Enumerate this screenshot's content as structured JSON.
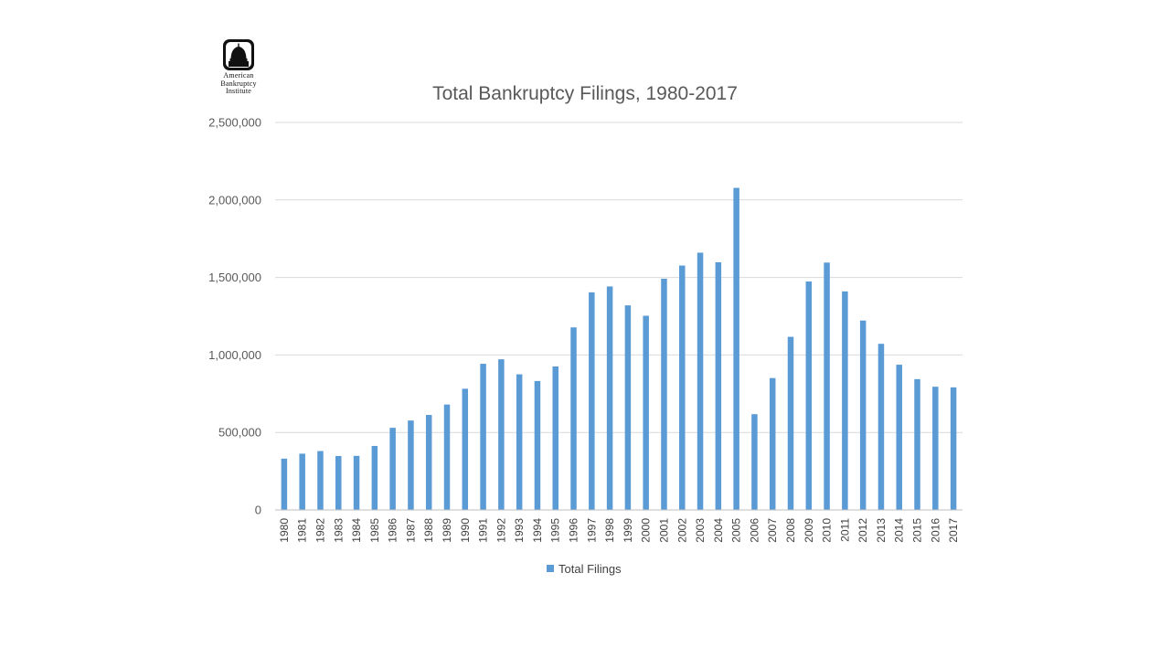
{
  "logo": {
    "icon": "capitol-dome-icon",
    "lines": [
      "American",
      "Bankruptcy",
      "Institute"
    ]
  },
  "colors": {
    "bar": "#5b9bd5",
    "text": "#595959",
    "grid": "#d9d9d9"
  },
  "chart_data": {
    "type": "bar",
    "title": "Total Bankruptcy Filings, 1980-2017",
    "xlabel": "",
    "ylabel": "",
    "ylim": [
      0,
      2500000
    ],
    "yticks": [
      0,
      500000,
      1000000,
      1500000,
      2000000,
      2500000
    ],
    "ytick_labels": [
      "0",
      "500,000",
      "1,000,000",
      "1,500,000",
      "2,000,000",
      "2,500,000"
    ],
    "grid": true,
    "legend_position": "bottom",
    "categories": [
      "1980",
      "1981",
      "1982",
      "1983",
      "1984",
      "1985",
      "1986",
      "1987",
      "1988",
      "1989",
      "1990",
      "1991",
      "1992",
      "1993",
      "1994",
      "1995",
      "1996",
      "1997",
      "1998",
      "1999",
      "2000",
      "2001",
      "2002",
      "2003",
      "2004",
      "2005",
      "2006",
      "2007",
      "2008",
      "2009",
      "2010",
      "2011",
      "2012",
      "2013",
      "2014",
      "2015",
      "2016",
      "2017"
    ],
    "series": [
      {
        "name": "Total Filings",
        "values": [
          331000,
          363000,
          380000,
          348000,
          349000,
          413000,
          530000,
          577000,
          613000,
          680000,
          782000,
          943000,
          972000,
          875000,
          832000,
          926000,
          1178000,
          1404000,
          1442000,
          1320000,
          1253000,
          1492000,
          1577000,
          1660000,
          1598000,
          2078000,
          618000,
          851000,
          1117000,
          1474000,
          1596000,
          1410000,
          1222000,
          1072000,
          937000,
          844000,
          795000,
          791000
        ]
      }
    ]
  }
}
